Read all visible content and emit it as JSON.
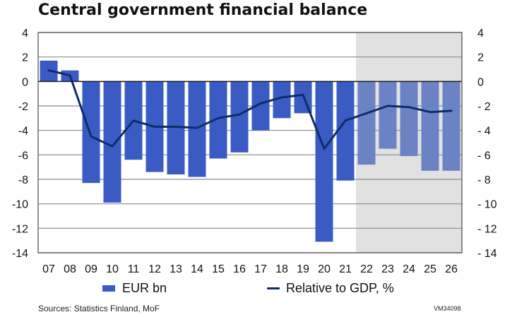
{
  "chart_data": {
    "type": "bar+line",
    "title": "Central government financial balance",
    "categories": [
      "07",
      "08",
      "09",
      "10",
      "11",
      "12",
      "13",
      "14",
      "15",
      "16",
      "17",
      "18",
      "19",
      "20",
      "21",
      "22",
      "23",
      "24",
      "25",
      "26"
    ],
    "projection_start_category": "22",
    "series": [
      {
        "name": "EUR bn",
        "type": "bar",
        "axis": "left",
        "values": [
          1.7,
          0.9,
          -8.3,
          -9.9,
          -6.4,
          -7.4,
          -7.6,
          -7.8,
          -6.3,
          -5.8,
          -4.0,
          -3.0,
          -2.6,
          -13.1,
          -8.1,
          -6.8,
          -5.5,
          -6.1,
          -7.3,
          -7.3
        ],
        "color": "#3a5bc4",
        "projection_color": "#6b83c4"
      },
      {
        "name": "Relative to GDP, %",
        "type": "line",
        "axis": "right",
        "values": [
          0.9,
          0.5,
          -4.5,
          -5.3,
          -3.2,
          -3.7,
          -3.7,
          -3.8,
          -3.0,
          -2.7,
          -1.8,
          -1.3,
          -1.1,
          -5.5,
          -3.2,
          -2.6,
          -2.0,
          -2.1,
          -2.5,
          -2.4
        ],
        "color": "#0f2d6b"
      }
    ],
    "ylim": [
      -14,
      4
    ],
    "y_left_ticks": [
      "4",
      "2",
      "0",
      "-2",
      "-4",
      "-6",
      "-8",
      "-10",
      "-12",
      "-14"
    ],
    "y_right_ticks": [
      "4",
      "2",
      "0",
      "- 2",
      "- 4",
      "- 6",
      "- 8",
      "- 10",
      "- 12",
      "- 14"
    ],
    "y_tick_values": [
      4,
      2,
      0,
      -2,
      -4,
      -6,
      -8,
      -10,
      -12,
      -14
    ],
    "grid": true,
    "legend_position": "bottom",
    "projection_shade_color": "#e1e1e1"
  },
  "legend": {
    "bar_label": "EUR bn",
    "line_label": "Relative to GDP, %"
  },
  "footer": {
    "source": "Sources: Statistics Finland, MoF",
    "code": "VM34098"
  }
}
